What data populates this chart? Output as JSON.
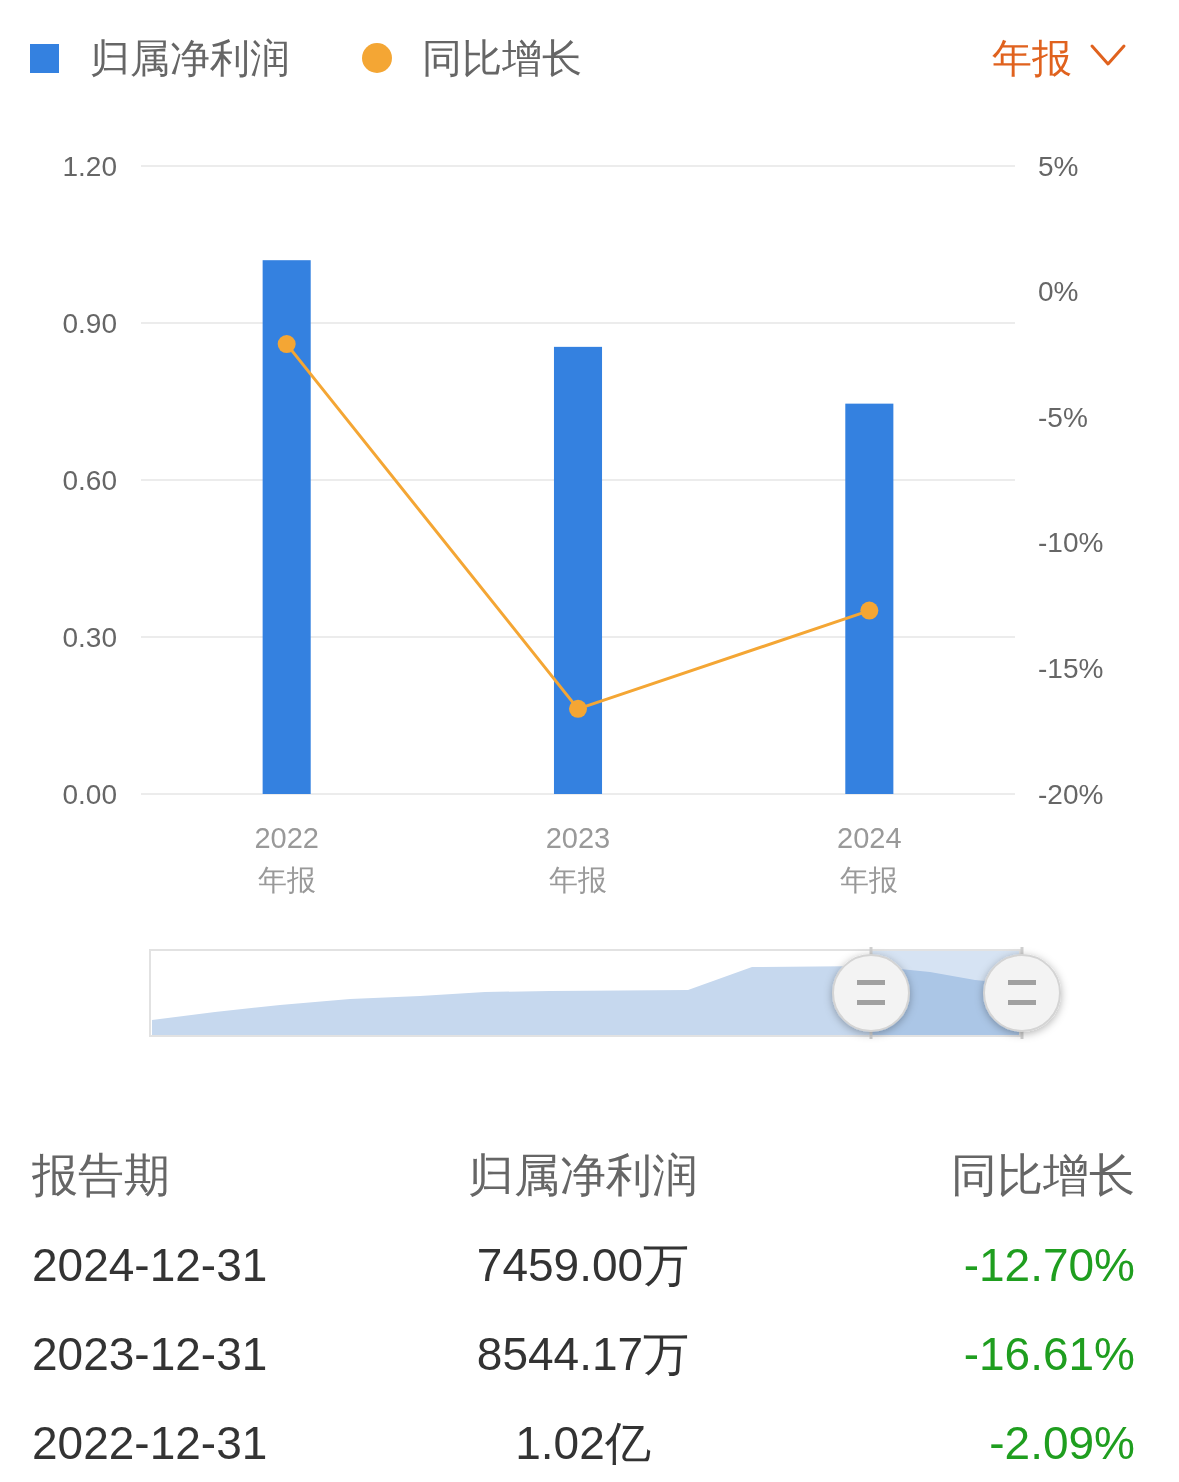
{
  "chart_data": {
    "type": "bar",
    "categories": [
      "2022\n年报",
      "2023\n年报",
      "2024\n年报"
    ],
    "series": [
      {
        "name": "归属净利润",
        "color": "#3481e0",
        "values": [
          1.02,
          0.854417,
          0.7459
        ]
      },
      {
        "name": "同比增长",
        "type": "line",
        "axis": "y2",
        "color": "#f4a634",
        "values": [
          -2.09,
          -16.61,
          -12.7
        ]
      }
    ],
    "ylim": [
      0,
      1.2
    ],
    "yticks": [
      {
        "value": 0,
        "label": "0.00"
      },
      {
        "value": 0.3,
        "label": "0.30"
      },
      {
        "value": 0.6,
        "label": "0.60"
      },
      {
        "value": 0.9,
        "label": "0.90"
      },
      {
        "value": 1.2,
        "label": "1.20"
      }
    ],
    "y2lim": [
      -20,
      5
    ],
    "y2ticks": [
      {
        "value": -20,
        "label": "-20%"
      },
      {
        "value": -15,
        "label": "-15%"
      },
      {
        "value": -10,
        "label": "-10%"
      },
      {
        "value": -5,
        "label": "-5%"
      },
      {
        "value": 0,
        "label": "0%"
      },
      {
        "value": 5,
        "label": "5%"
      }
    ],
    "grid": "y",
    "legend": "top left",
    "marker": "circle",
    "annotations": [
      "年报",
      "报告期",
      "归属净利润",
      "同比增长",
      "2024-12-31",
      "7459.00万",
      "-12.70%",
      "2023-12-31",
      "8544.17万",
      "-16.61%",
      "2022-12-31",
      "1.02亿",
      "-2.09%"
    ]
  }
}
